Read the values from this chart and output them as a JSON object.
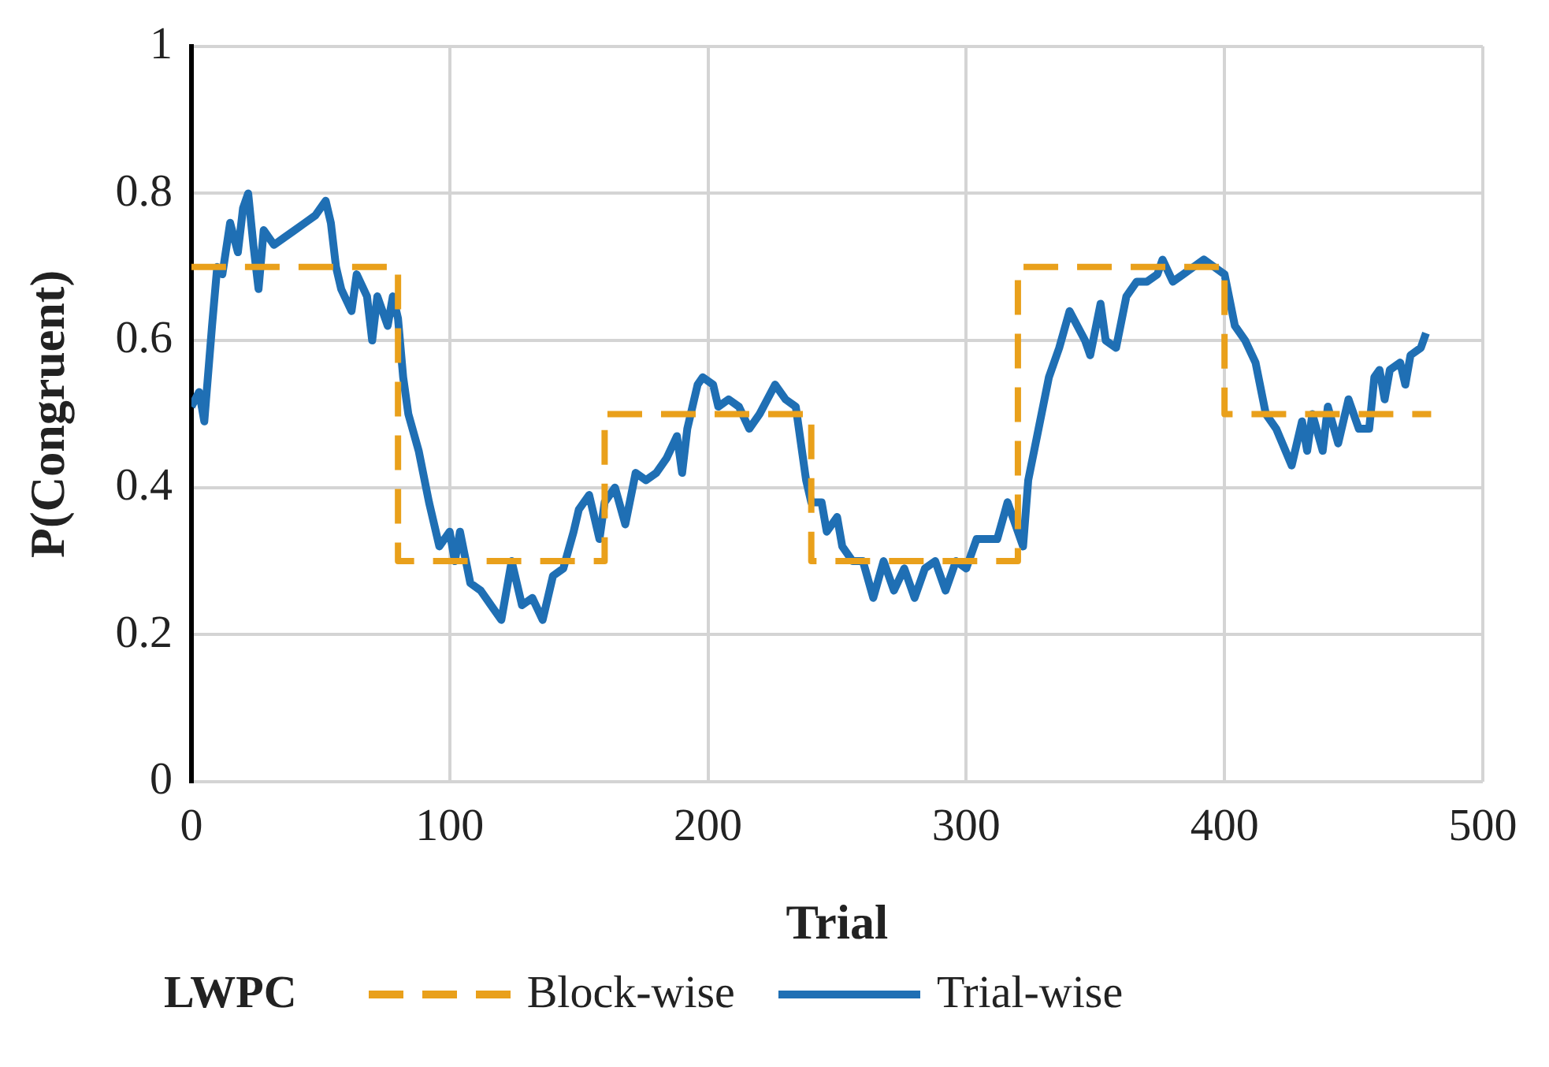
{
  "chart_data": {
    "type": "line",
    "xlabel": "Trial",
    "ylabel": "P(Congruent)",
    "legend_title": "LWPC",
    "legend": "bottom",
    "grid": true,
    "marker": "none",
    "xlim": [
      0,
      500
    ],
    "xticks": [
      0,
      100,
      200,
      300,
      400,
      500
    ],
    "ylim": [
      0,
      1
    ],
    "yticks": [
      0,
      0.2,
      0.4,
      0.6,
      0.8,
      1
    ],
    "series": [
      {
        "name": "Block-wise",
        "type": "step",
        "color": "#e9a01b",
        "line_style": "dashed",
        "x": [
          0,
          80,
          160,
          240,
          320,
          400,
          480
        ],
        "values": [
          0.7,
          0.3,
          0.5,
          0.3,
          0.7,
          0.5,
          0.5
        ]
      },
      {
        "name": "Trial-wise",
        "type": "line",
        "color": "#1f6fb4",
        "line_style": "solid",
        "x": [
          0,
          3,
          5,
          8,
          10,
          12,
          15,
          18,
          20,
          22,
          24,
          26,
          28,
          32,
          36,
          40,
          44,
          48,
          52,
          54,
          56,
          58,
          62,
          64,
          68,
          70,
          72,
          76,
          78,
          80,
          82,
          84,
          88,
          92,
          96,
          100,
          102,
          104,
          108,
          112,
          116,
          120,
          124,
          128,
          132,
          136,
          140,
          144,
          148,
          150,
          154,
          158,
          160,
          164,
          168,
          172,
          176,
          180,
          184,
          188,
          190,
          192,
          196,
          198,
          202,
          204,
          208,
          212,
          216,
          220,
          226,
          230,
          234,
          236,
          238,
          240,
          244,
          246,
          250,
          252,
          256,
          260,
          264,
          268,
          272,
          276,
          280,
          284,
          288,
          292,
          296,
          300,
          304,
          308,
          312,
          316,
          318,
          322,
          324,
          328,
          332,
          336,
          340,
          346,
          348,
          352,
          354,
          358,
          362,
          366,
          370,
          374,
          376,
          380,
          384,
          388,
          392,
          396,
          400,
          404,
          408,
          412,
          416,
          420,
          426,
          430,
          432,
          434,
          438,
          440,
          444,
          448,
          452,
          456,
          458,
          460,
          462,
          464,
          468,
          470,
          472,
          476,
          478
        ],
        "values": [
          0.51,
          0.53,
          0.49,
          0.62,
          0.7,
          0.69,
          0.76,
          0.72,
          0.78,
          0.8,
          0.73,
          0.67,
          0.75,
          0.73,
          0.74,
          0.75,
          0.76,
          0.77,
          0.79,
          0.76,
          0.7,
          0.67,
          0.64,
          0.69,
          0.66,
          0.6,
          0.66,
          0.62,
          0.66,
          0.63,
          0.55,
          0.5,
          0.45,
          0.38,
          0.32,
          0.34,
          0.3,
          0.34,
          0.27,
          0.26,
          0.24,
          0.22,
          0.3,
          0.24,
          0.25,
          0.22,
          0.28,
          0.29,
          0.34,
          0.37,
          0.39,
          0.33,
          0.38,
          0.4,
          0.35,
          0.42,
          0.41,
          0.42,
          0.44,
          0.47,
          0.42,
          0.48,
          0.54,
          0.55,
          0.54,
          0.51,
          0.52,
          0.51,
          0.48,
          0.5,
          0.54,
          0.52,
          0.51,
          0.46,
          0.41,
          0.38,
          0.38,
          0.34,
          0.36,
          0.32,
          0.3,
          0.3,
          0.25,
          0.3,
          0.26,
          0.29,
          0.25,
          0.29,
          0.3,
          0.26,
          0.3,
          0.29,
          0.33,
          0.33,
          0.33,
          0.38,
          0.36,
          0.32,
          0.41,
          0.48,
          0.55,
          0.59,
          0.64,
          0.6,
          0.58,
          0.65,
          0.6,
          0.59,
          0.66,
          0.68,
          0.68,
          0.69,
          0.71,
          0.68,
          0.69,
          0.7,
          0.71,
          0.7,
          0.69,
          0.62,
          0.6,
          0.57,
          0.5,
          0.48,
          0.43,
          0.49,
          0.45,
          0.5,
          0.45,
          0.51,
          0.46,
          0.52,
          0.48,
          0.48,
          0.55,
          0.56,
          0.52,
          0.56,
          0.57,
          0.54,
          0.58,
          0.59,
          0.61
        ]
      }
    ]
  }
}
